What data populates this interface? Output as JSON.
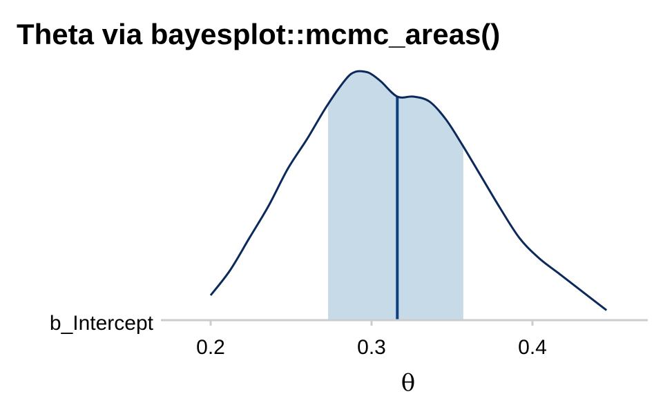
{
  "chart_data": {
    "type": "area",
    "title": "Theta via bayesplot::mcmc_areas()",
    "xlabel": "θ",
    "ylabel": "",
    "parameter": "b_Intercept",
    "xlim": [
      0.17,
      0.47
    ],
    "x_ticks": [
      0.2,
      0.3,
      0.4
    ],
    "x_tick_labels": [
      "0.2",
      "0.3",
      "0.4"
    ],
    "grid": false,
    "density": {
      "x": [
        0.2,
        0.212,
        0.224,
        0.236,
        0.248,
        0.26,
        0.272,
        0.284,
        0.29,
        0.296,
        0.3,
        0.306,
        0.316,
        0.326,
        0.336,
        0.346,
        0.356,
        0.368,
        0.38,
        0.392,
        0.404,
        0.416,
        0.428,
        0.44,
        0.446
      ],
      "y": [
        0.1,
        0.2,
        0.33,
        0.46,
        0.61,
        0.73,
        0.86,
        0.97,
        1.0,
        1.0,
        0.99,
        0.96,
        0.9,
        0.9,
        0.88,
        0.81,
        0.71,
        0.58,
        0.45,
        0.33,
        0.25,
        0.19,
        0.13,
        0.07,
        0.04
      ]
    },
    "interval_inner": [
      0.273,
      0.357
    ],
    "median": 0.316,
    "colors": {
      "outline": "#0b2a5b",
      "interval_fill": "#c6dae8",
      "median_line": "#0e3f82",
      "axis": "#cccccc"
    }
  }
}
